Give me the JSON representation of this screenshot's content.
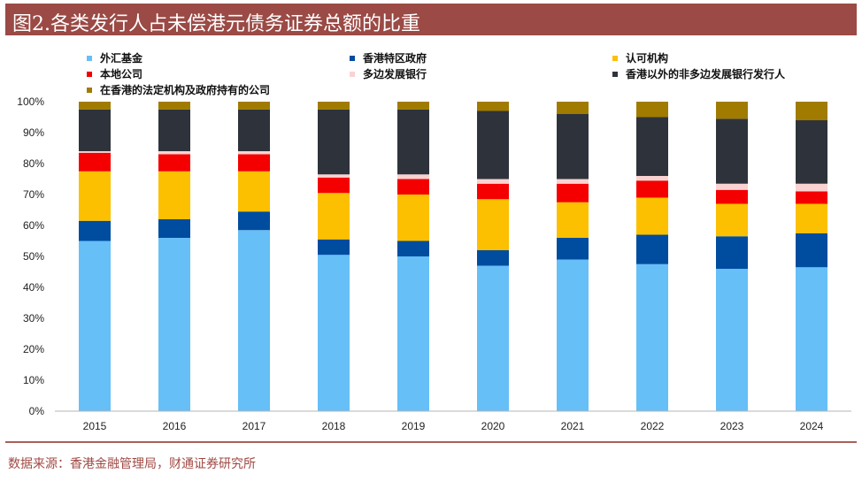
{
  "title": "图2.各类发行人占未偿港元债务证券总额的比重",
  "source": "数据来源：香港金融管理局，财通证券研究所",
  "chart_data": {
    "type": "bar",
    "stacked": true,
    "percent": true,
    "categories": [
      "2015",
      "2016",
      "2017",
      "2018",
      "2019",
      "2020",
      "2021",
      "2022",
      "2023",
      "2024"
    ],
    "y_ticks": [
      "0%",
      "10%",
      "20%",
      "30%",
      "40%",
      "50%",
      "60%",
      "70%",
      "80%",
      "90%",
      "100%"
    ],
    "ylim": [
      0,
      100
    ],
    "legend_position": "top",
    "series": [
      {
        "name": "外汇基金",
        "color": "#66bff7",
        "values": [
          55,
          56,
          58.5,
          50.5,
          50,
          47,
          49,
          47.5,
          46,
          46.5
        ]
      },
      {
        "name": "香港特区政府",
        "color": "#004c9f",
        "values": [
          6.5,
          6,
          6,
          5,
          5,
          5,
          7,
          9.5,
          10.5,
          11
        ]
      },
      {
        "name": "认可机构",
        "color": "#fcc000",
        "values": [
          16,
          15.5,
          13,
          15,
          15,
          16.5,
          11.5,
          12,
          10.5,
          9.5
        ]
      },
      {
        "name": "本地公司",
        "color": "#f40000",
        "values": [
          6,
          5.5,
          5.5,
          5,
          5,
          5,
          6,
          5.5,
          4.5,
          4
        ]
      },
      {
        "name": "多边发展银行",
        "color": "#f9d3d1",
        "values": [
          0.5,
          1,
          1,
          1,
          1.5,
          1.5,
          1.5,
          1.5,
          2,
          2.5
        ]
      },
      {
        "name": "香港以外的非多边发展银行发行人",
        "color": "#2e333b",
        "values": [
          13.5,
          13.5,
          13.5,
          21,
          21,
          22,
          21,
          19,
          21,
          20.5
        ]
      },
      {
        "name": "在香港的法定机构及政府持有的公司",
        "color": "#a07b00",
        "values": [
          2.5,
          2.5,
          2.5,
          2.5,
          2.5,
          3,
          4,
          5,
          5.5,
          6
        ]
      }
    ]
  }
}
